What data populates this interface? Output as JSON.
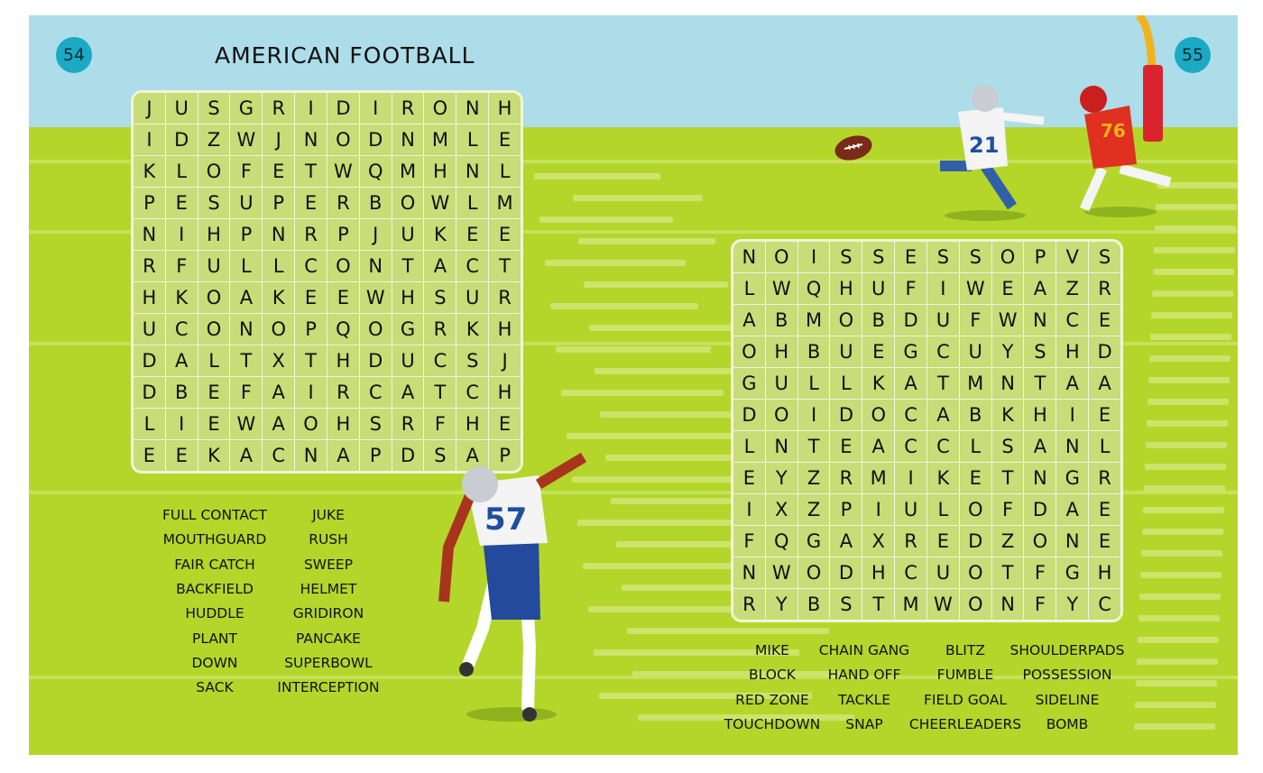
{
  "page_left": {
    "number": "54",
    "title": "AMERICAN FOOTBALL"
  },
  "page_right": {
    "number": "55"
  },
  "colors": {
    "sky": "#acdde9",
    "field": "#b4d62a",
    "grid_cell": "#c8dc78",
    "page_badge": "#1ba9c4"
  },
  "puzzle1": {
    "rows": [
      "JUSGRIDIRONH",
      "IDZWJNODNMLE",
      "KLOFETWQMHNL",
      "PESUPERBOWLM",
      "NIHPNRPJUKEE",
      "RFULLCONTACT",
      "HKOAKEEWHSUR",
      "UCONOPQOGRKH",
      "DALTXTHDUCSJ",
      "DBEFAIRCATCH",
      "LIEWAOHSRFHE",
      "EEKACNAPDSAP"
    ],
    "words": [
      "FULL CONTACT",
      "JUKE",
      "MOUTHGUARD",
      "RUSH",
      "FAIR CATCH",
      "SWEEP",
      "BACKFIELD",
      "HELMET",
      "HUDDLE",
      "GRIDIRON",
      "PLANT",
      "PANCAKE",
      "DOWN",
      "SUPERBOWL",
      "SACK",
      "INTERCEPTION"
    ]
  },
  "puzzle2": {
    "rows": [
      "NOISSESSOPVS",
      "LWQHUFIWEAZR",
      "ABMOBDUFWNCE",
      "OHBUEGCUYSHD",
      "GULLKATMNTAA",
      "DOIDOCABKHIE",
      "LNTEACCLSANL",
      "EYZRMIKETNGR",
      "IXZPIULOFDAE",
      "FQGAXREDZONE",
      "NWODHCUOTFGH",
      "RYBSTMWONFYC"
    ],
    "words": [
      "MIKE",
      "CHAIN GANG",
      "BLITZ",
      "SHOULDERPADS",
      "BLOCK",
      "HAND OFF",
      "FUMBLE",
      "POSSESSION",
      "RED ZONE",
      "TACKLE",
      "FIELD GOAL",
      "SIDELINE",
      "TOUCHDOWN",
      "SNAP",
      "CHEERLEADERS",
      "BOMB"
    ]
  },
  "jerseys": [
    "57",
    "21",
    "76"
  ]
}
